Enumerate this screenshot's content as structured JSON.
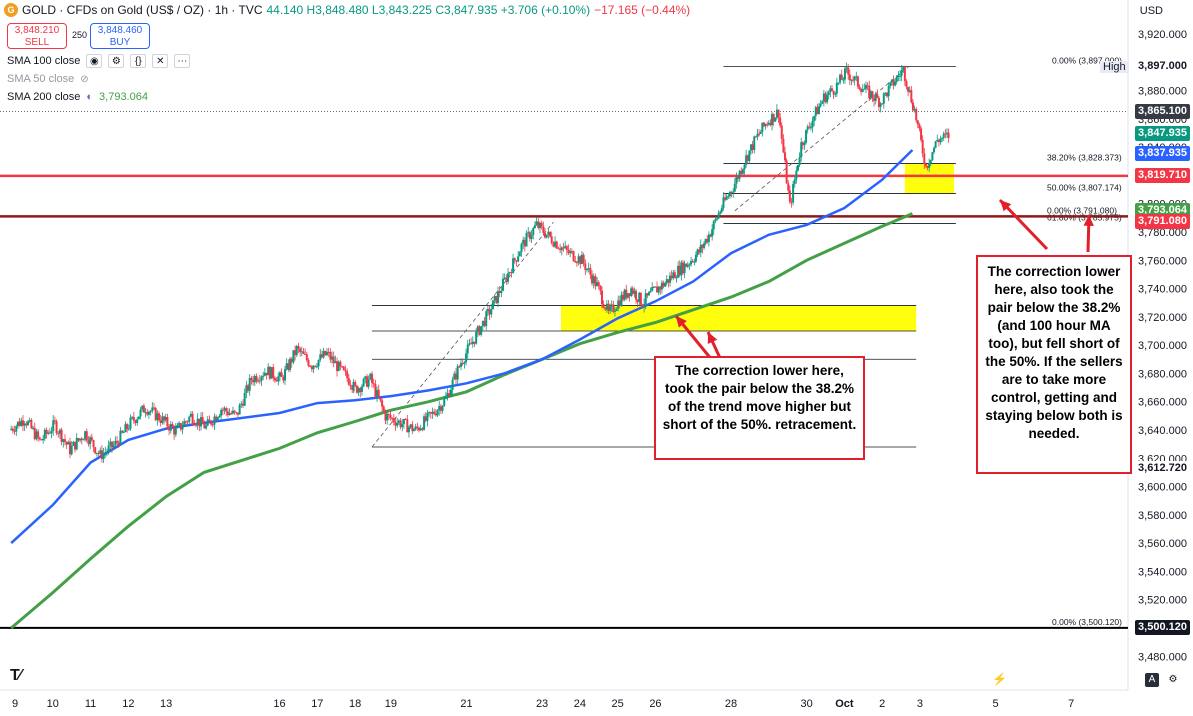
{
  "header": {
    "symbol_icon": "gold-coin-icon",
    "title": "GOLD · CFDs on Gold (US$ / OZ) · 1h · TVC",
    "ohlc": "44.140 H3,848.480 L3,843.225 C3,847.935 +3.706 (+0.10%)",
    "change": "−17.165 (−0.44%)"
  },
  "trade": {
    "sell_price": "3,848.210",
    "sell_label": "SELL",
    "spread": "250",
    "buy_price": "3,848.460",
    "buy_label": "BUY"
  },
  "indicators": [
    {
      "label": "SMA 100 close",
      "value": "",
      "dim": false
    },
    {
      "label": "SMA 50 close",
      "value": "",
      "dim": true
    },
    {
      "label": "SMA 200 close",
      "value": "3,793.064",
      "dim": false
    }
  ],
  "currency": "USD",
  "high_label": "High",
  "colors": {
    "up": "#089981",
    "down": "#f23645",
    "sma100": "#2962ff",
    "sma200": "#43a047",
    "highlight": "#ffff00",
    "annotation": "#e0202a"
  },
  "annotations": [
    {
      "text": "The correction lower here, took the pair below the 38.2% of the trend move higher but short of the 50%. retracement."
    },
    {
      "text": "The correction lower here, also took the pair below the 38.2% (and 100 hour MA too), but fell short of the 50%.  If the sellers are to take more control, getting and staying below both is needed."
    }
  ],
  "price_badges": [
    {
      "value": "3,897.000",
      "color": "#ffffff",
      "text_color": "#131722"
    },
    {
      "value": "3,865.100",
      "color": "#363a45",
      "text_color": "#ffffff"
    },
    {
      "value": "3,847.935",
      "color": "#089981",
      "text_color": "#ffffff"
    },
    {
      "value": "3,837.935",
      "color": "#2962ff",
      "text_color": "#ffffff"
    },
    {
      "value": "3,819.710",
      "color": "#f23645",
      "text_color": "#ffffff"
    },
    {
      "value": "3,793.064",
      "color": "#43a047",
      "text_color": "#ffffff"
    },
    {
      "value": "3,791.080",
      "color": "#f23645",
      "text_color": "#ffffff"
    },
    {
      "value": "3,612.720",
      "color": "#ffffff",
      "text_color": "#131722"
    },
    {
      "value": "3,500.120",
      "color": "#131722",
      "text_color": "#ffffff"
    }
  ],
  "chart_data": {
    "type": "candlestick",
    "ylim": [
      3460,
      3930
    ],
    "y_ticks": [
      3480,
      3500,
      3520,
      3540,
      3560,
      3580,
      3600,
      3620,
      3640,
      3660,
      3680,
      3700,
      3720,
      3740,
      3760,
      3780,
      3800,
      3820,
      3840,
      3860,
      3880,
      3900,
      3920
    ],
    "x_ticks": [
      "9",
      "10",
      "11",
      "12",
      "13",
      "16",
      "17",
      "18",
      "19",
      "21",
      "23",
      "24",
      "25",
      "26",
      "28",
      "30",
      "Oct",
      "2",
      "3",
      "5",
      "7"
    ],
    "x_tick_days": [
      9,
      10,
      11,
      12,
      13,
      16,
      17,
      18,
      19,
      21,
      23,
      24,
      25,
      26,
      28,
      30,
      31,
      32,
      33,
      35,
      37
    ],
    "horizontal_lines": [
      {
        "name": "red-line-upper",
        "y": 3819.71,
        "color": "#f23645"
      },
      {
        "name": "dark-red-line",
        "y": 3791.08,
        "color": "#8b1a1a"
      },
      {
        "name": "black-line-low",
        "y": 3500.12,
        "color": "#000000"
      }
    ],
    "fib_levels": [
      {
        "label": "0.00% (3,897.000)",
        "y": 3897.0
      },
      {
        "label": "38.20% (3,828.373)",
        "y": 3828.373
      },
      {
        "label": "50.00% (3,807.174)",
        "y": 3807.174
      },
      {
        "label": "0.00% (3,791.080)",
        "y": 3791.08
      },
      {
        "label": "61.80% (3,785.975)",
        "y": 3785.975
      },
      {
        "label": "0.00% (3,500.120)",
        "y": 3500.12
      }
    ],
    "lower_fib_levels": [
      3728,
      3710,
      3690,
      3628
    ],
    "highlight_zones": [
      {
        "name": "yellow-zone-lower",
        "x1_day": 23.5,
        "x2_day": 32.9,
        "y1": 3728,
        "y2": 3710
      },
      {
        "name": "yellow-zone-upper",
        "x1_day": 32.6,
        "x2_day": 33.9,
        "y1": 3828.373,
        "y2": 3807.174
      }
    ],
    "sma100": [
      [
        8.9,
        3560
      ],
      [
        10,
        3587
      ],
      [
        11,
        3617
      ],
      [
        12,
        3633
      ],
      [
        13,
        3641
      ],
      [
        14,
        3645
      ],
      [
        16,
        3652
      ],
      [
        17,
        3659
      ],
      [
        18,
        3661
      ],
      [
        19,
        3664
      ],
      [
        20,
        3668
      ],
      [
        21,
        3673
      ],
      [
        22,
        3680
      ],
      [
        23,
        3690
      ],
      [
        24,
        3704
      ],
      [
        25,
        3719
      ],
      [
        26,
        3731
      ],
      [
        27,
        3745
      ],
      [
        28,
        3765
      ],
      [
        29,
        3778
      ],
      [
        30,
        3785
      ],
      [
        31,
        3797
      ],
      [
        32,
        3817
      ],
      [
        32.8,
        3838
      ]
    ],
    "sma200": [
      [
        8.9,
        3500
      ],
      [
        10,
        3525
      ],
      [
        11,
        3549
      ],
      [
        12,
        3572
      ],
      [
        13,
        3593
      ],
      [
        14,
        3610
      ],
      [
        16,
        3627
      ],
      [
        17,
        3638
      ],
      [
        18,
        3646
      ],
      [
        19,
        3654
      ],
      [
        20,
        3660
      ],
      [
        21,
        3667
      ],
      [
        22,
        3679
      ],
      [
        23,
        3690
      ],
      [
        24,
        3701
      ],
      [
        25,
        3709
      ],
      [
        26,
        3716
      ],
      [
        27,
        3725
      ],
      [
        28,
        3734
      ],
      [
        29,
        3745
      ],
      [
        30,
        3760
      ],
      [
        31,
        3772
      ],
      [
        32,
        3784
      ],
      [
        32.8,
        3793
      ]
    ],
    "price_path": [
      [
        8.9,
        3640
      ],
      [
        9.3,
        3648
      ],
      [
        9.7,
        3632
      ],
      [
        10.1,
        3644
      ],
      [
        10.5,
        3626
      ],
      [
        10.9,
        3638
      ],
      [
        11.3,
        3622
      ],
      [
        11.7,
        3630
      ],
      [
        12.1,
        3645
      ],
      [
        12.5,
        3656
      ],
      [
        12.9,
        3648
      ],
      [
        13.3,
        3639
      ],
      [
        13.7,
        3650
      ],
      [
        14.1,
        3642
      ],
      [
        14.5,
        3655
      ],
      [
        14.9,
        3650
      ],
      [
        15.3,
        3676
      ],
      [
        15.7,
        3682
      ],
      [
        16.1,
        3676
      ],
      [
        16.5,
        3697
      ],
      [
        16.9,
        3686
      ],
      [
        17.3,
        3694
      ],
      [
        17.7,
        3681
      ],
      [
        18.1,
        3669
      ],
      [
        18.5,
        3676
      ],
      [
        18.9,
        3650
      ],
      [
        19.3,
        3645
      ],
      [
        19.7,
        3640
      ],
      [
        20.1,
        3650
      ],
      [
        20.5,
        3662
      ],
      [
        20.9,
        3688
      ],
      [
        21.3,
        3707
      ],
      [
        21.7,
        3726
      ],
      [
        22.1,
        3748
      ],
      [
        22.5,
        3770
      ],
      [
        22.9,
        3785
      ],
      [
        23.3,
        3775
      ],
      [
        23.7,
        3766
      ],
      [
        24.1,
        3760
      ],
      [
        24.5,
        3742
      ],
      [
        24.8,
        3722
      ],
      [
        25.1,
        3732
      ],
      [
        25.4,
        3740
      ],
      [
        25.7,
        3730
      ],
      [
        26,
        3738
      ],
      [
        26.3,
        3744
      ],
      [
        26.6,
        3752
      ],
      [
        26.9,
        3758
      ],
      [
        27.2,
        3766
      ],
      [
        27.5,
        3780
      ],
      [
        27.8,
        3798
      ],
      [
        28.1,
        3812
      ],
      [
        28.4,
        3830
      ],
      [
        28.7,
        3846
      ],
      [
        29,
        3858
      ],
      [
        29.3,
        3865
      ],
      [
        29.6,
        3798
      ],
      [
        29.9,
        3842
      ],
      [
        30.2,
        3860
      ],
      [
        30.5,
        3875
      ],
      [
        30.8,
        3882
      ],
      [
        31.1,
        3893
      ],
      [
        31.4,
        3885
      ],
      [
        31.7,
        3878
      ],
      [
        32,
        3872
      ],
      [
        32.3,
        3884
      ],
      [
        32.6,
        3895
      ],
      [
        32.9,
        3866
      ],
      [
        33.2,
        3826
      ],
      [
        33.5,
        3845
      ],
      [
        33.8,
        3848
      ]
    ],
    "trend_lines": [
      {
        "x1": 18.5,
        "y1": 3628,
        "x2": 23.3,
        "y2": 3787
      },
      {
        "x1": 28.1,
        "y1": 3795,
        "x2": 32.7,
        "y2": 3897
      }
    ]
  }
}
